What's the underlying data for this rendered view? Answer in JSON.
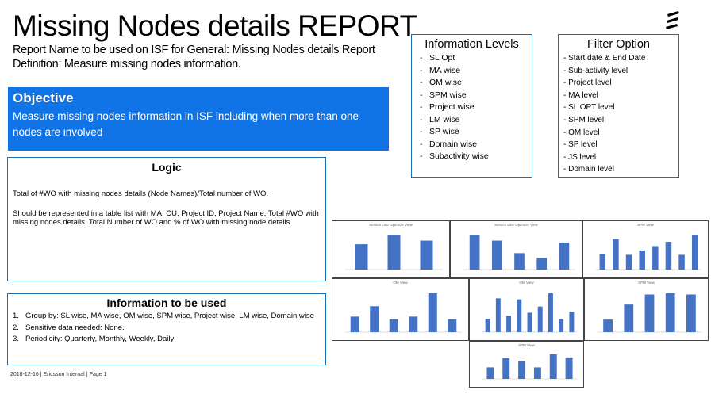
{
  "header": {
    "title": "Missing Nodes details REPORT",
    "report_name": "Report Name to be used on ISF for General: Missing Nodes details Report",
    "definition": "Definition: Measure missing nodes information."
  },
  "objective": {
    "heading": "Objective",
    "text": "Measure missing nodes information in ISF including when more than one nodes are involved"
  },
  "logic": {
    "heading": "Logic",
    "p1": "Total of #WO with missing nodes details (Node Names)/Total number of WO.",
    "p2": "Should be represented in a table list with MA, CU, Project ID, Project Name, Total #WO with missing nodes details, Total Number of WO and % of WO with missing node details."
  },
  "info_used": {
    "heading": "Information to be used",
    "items": [
      {
        "num": "1.",
        "text": "Group by: SL wise, MA wise, OM wise, SPM wise, Project wise, LM wise, Domain wise"
      },
      {
        "num": "2.",
        "text": "Sensitive data needed: None."
      },
      {
        "num": "3.",
        "text": "Periodicity: Quarterly, Monthly, Weekly, Daily"
      }
    ]
  },
  "info_levels": {
    "heading": "Information Levels",
    "items": [
      "SL Opt",
      "MA wise",
      "OM wise",
      "SPM wise",
      "Project wise",
      "LM wise",
      "SP wise",
      "Domain wise",
      "Subactivity wise"
    ]
  },
  "filter_option": {
    "heading": "Filter Option",
    "items": [
      "- Start date & End Date",
      "- Sub-activity level",
      "- Project level",
      "- MA level",
      "- SL OPT level",
      "- SPM level",
      "- OM level",
      "- SP level",
      "- JS level",
      "- Domain level"
    ]
  },
  "footer": "2018-12-16  |  Ericsson Internal  |  Page 1",
  "colors": {
    "accent": "#1174e6",
    "bar": "#4472c4",
    "border": "#1a6fb3"
  },
  "icons": {
    "logo": "ericsson-logo-icon"
  },
  "chart_data": [
    {
      "type": "bar",
      "title": "Service Line Optimize View",
      "values": [
        35,
        48,
        40
      ]
    },
    {
      "type": "bar",
      "title": "Service Line Optimize View",
      "values": [
        36,
        30,
        17,
        12,
        28
      ]
    },
    {
      "type": "bar",
      "title": "SPM View",
      "values": [
        18,
        35,
        17,
        22,
        27,
        32,
        17,
        40
      ]
    },
    {
      "type": "bar",
      "title": "OM View",
      "values": [
        12,
        20,
        10,
        12,
        30,
        10
      ]
    },
    {
      "type": "bar",
      "title": "OM View",
      "values": [
        13,
        33,
        16,
        32,
        19,
        25,
        38,
        13,
        20
      ]
    },
    {
      "type": "bar",
      "title": "SPM View",
      "values": [
        10,
        22,
        30,
        31,
        30
      ]
    },
    {
      "type": "bar",
      "title": "SPM View",
      "values": [
        14,
        25,
        22,
        14,
        30,
        26
      ]
    }
  ]
}
